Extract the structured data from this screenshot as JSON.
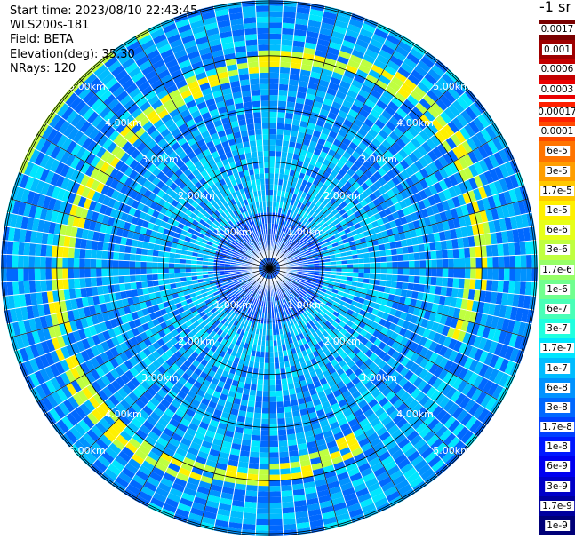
{
  "info": {
    "start_time": "Start time: 2023/08/10 22:43:45",
    "device": "WLS200s-181",
    "field": "Field: BETA",
    "elevation": "Elevation(deg): 35.30",
    "nrays": "NRays: 120"
  },
  "colorbar": {
    "unit": "-1 sr",
    "upper": [
      {
        "label": "0.0017",
        "color": "#7a0000"
      },
      {
        "label": "0.001",
        "color": "#9e0000"
      },
      {
        "label": "0.0006",
        "color": "#c40000"
      },
      {
        "label": "0.0003",
        "color": "#ea0000"
      }
    ],
    "lower": [
      {
        "label": "0.00017",
        "color": "#ff2000"
      },
      {
        "label": "0.0001",
        "color": "#ff4a00"
      },
      {
        "label": "6e-5",
        "color": "#ff7400"
      },
      {
        "label": "3e-5",
        "color": "#ff9e00"
      },
      {
        "label": "1.7e-5",
        "color": "#ffc800"
      },
      {
        "label": "1e-5",
        "color": "#fff000"
      },
      {
        "label": "6e-6",
        "color": "#e6ff19"
      },
      {
        "label": "3e-6",
        "color": "#bfff40"
      },
      {
        "label": "1.7e-6",
        "color": "#97ff68"
      },
      {
        "label": "1e-6",
        "color": "#70ff8f"
      },
      {
        "label": "6e-7",
        "color": "#48ffb7"
      },
      {
        "label": "3e-7",
        "color": "#20ffdf"
      },
      {
        "label": "1.7e-7",
        "color": "#00e6ff"
      },
      {
        "label": "1e-7",
        "color": "#00bcff"
      },
      {
        "label": "6e-8",
        "color": "#0092ff"
      },
      {
        "label": "3e-8",
        "color": "#0068ff"
      },
      {
        "label": "1.7e-8",
        "color": "#0040ff"
      },
      {
        "label": "1e-8",
        "color": "#0018ff"
      },
      {
        "label": "6e-9",
        "color": "#0000f0"
      },
      {
        "label": "3e-9",
        "color": "#0000c8"
      },
      {
        "label": "1.7e-9",
        "color": "#00009e"
      },
      {
        "label": "1e-9",
        "color": "#000078"
      }
    ]
  },
  "rings": [
    {
      "label": "1.00km"
    },
    {
      "label": "2.00km"
    },
    {
      "label": "3.00km"
    },
    {
      "label": "4.00km"
    },
    {
      "label": "5.00km"
    }
  ],
  "chart_data": {
    "type": "heatmap",
    "projection": "polar",
    "field": "BETA",
    "n_rays": 120,
    "azimuth_range_deg": [
      0,
      360
    ],
    "range_km": [
      0,
      5.0
    ],
    "ring_labels": [
      "1.00km",
      "2.00km",
      "3.00km",
      "4.00km",
      "5.00km"
    ],
    "dominant_values": [
      "1e-7",
      "6e-8",
      "3e-8"
    ],
    "features": [
      {
        "name": "arc",
        "range_km": [
          3.7,
          4.6
        ],
        "value": "1e-5"
      }
    ]
  }
}
